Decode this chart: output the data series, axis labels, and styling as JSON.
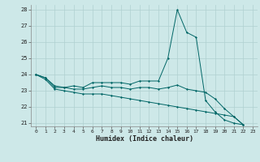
{
  "xlabel": "Humidex (Indice chaleur)",
  "ylabel": "",
  "bg_color": "#cde8e8",
  "grid_color": "#b0d0d0",
  "line_color": "#006666",
  "xlim": [
    -0.5,
    23.5
  ],
  "ylim": [
    20.8,
    28.3
  ],
  "xticks": [
    0,
    1,
    2,
    3,
    4,
    5,
    6,
    7,
    8,
    9,
    10,
    11,
    12,
    13,
    14,
    15,
    16,
    17,
    18,
    19,
    20,
    21,
    22,
    23
  ],
  "yticks": [
    21,
    22,
    23,
    24,
    25,
    26,
    27,
    28
  ],
  "series1": [
    24.0,
    23.8,
    23.2,
    23.2,
    23.3,
    23.2,
    23.5,
    23.5,
    23.5,
    23.5,
    23.4,
    23.6,
    23.6,
    23.6,
    25.0,
    28.0,
    26.6,
    26.3,
    22.4,
    21.7,
    21.2,
    21.0,
    20.9
  ],
  "series2": [
    24.0,
    23.8,
    23.3,
    23.2,
    23.1,
    23.1,
    23.2,
    23.3,
    23.2,
    23.2,
    23.1,
    23.2,
    23.2,
    23.1,
    23.2,
    23.35,
    23.1,
    23.0,
    22.9,
    22.5,
    21.9,
    21.4,
    20.9
  ],
  "series3": [
    24.0,
    23.7,
    23.1,
    23.0,
    22.9,
    22.8,
    22.8,
    22.8,
    22.7,
    22.6,
    22.5,
    22.4,
    22.3,
    22.2,
    22.1,
    22.0,
    21.9,
    21.8,
    21.7,
    21.6,
    21.5,
    21.4,
    20.9
  ]
}
